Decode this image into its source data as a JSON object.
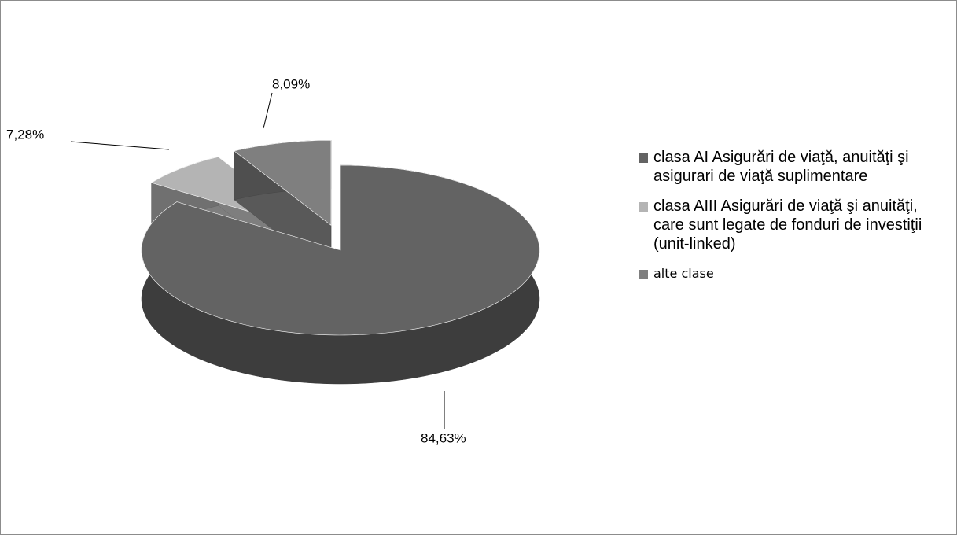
{
  "chart_data": {
    "type": "pie",
    "categories": [
      "clasa AI Asigurări de viaţă, anuităţi şi asigurari de viaţă suplimentare",
      "clasa AIII Asigurări de viaţă şi anuităţi, care sunt legate de fonduri de investiţii (unit-linked)",
      "alte clase"
    ],
    "values": [
      84.63,
      7.28,
      8.09
    ],
    "value_labels": [
      "84,63%",
      "7,28%",
      "8,09%"
    ],
    "colors": [
      "#636363",
      "#b4b4b4",
      "#7f7f7f"
    ],
    "legend": "right"
  }
}
